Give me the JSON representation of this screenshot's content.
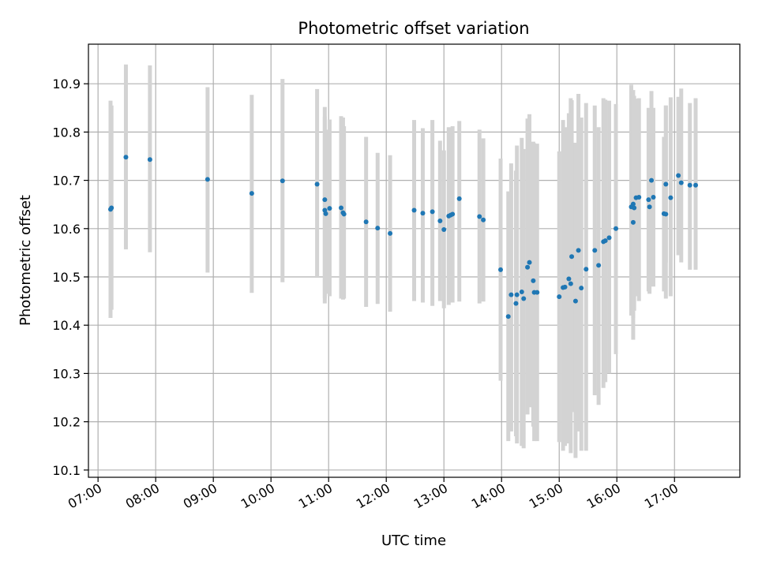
{
  "chart_data": {
    "type": "scatter",
    "title": "Photometric offset variation",
    "xlabel": "UTC time",
    "ylabel": "Photometric offset",
    "x_ticks": [
      "07:00",
      "08:00",
      "09:00",
      "10:00",
      "11:00",
      "12:00",
      "13:00",
      "14:00",
      "15:00",
      "16:00",
      "17:00"
    ],
    "y_ticks": [
      "10.1",
      "10.2",
      "10.3",
      "10.4",
      "10.5",
      "10.6",
      "10.7",
      "10.8",
      "10.9"
    ],
    "xlim": [
      "06:50",
      "18:08"
    ],
    "ylim": [
      10.085,
      10.982
    ],
    "grid": true,
    "colors": {
      "points": "#1f77b4",
      "errorbars": "#d3d3d3",
      "grid": "#b0b0b0"
    },
    "series": [
      {
        "x": [
          "07:13",
          "07:14",
          "07:29",
          "07:54",
          "08:54",
          "09:40",
          "10:12",
          "10:48",
          "10:56",
          "10:56",
          "10:57",
          "11:01",
          "11:13",
          "11:15",
          "11:16",
          "11:39",
          "11:51",
          "12:04",
          "12:29",
          "12:38",
          "12:48",
          "12:56",
          "13:00",
          "13:05",
          "13:07",
          "13:09",
          "13:16",
          "13:37",
          "13:41",
          "13:59",
          "14:07",
          "14:10",
          "14:15",
          "14:16",
          "14:21",
          "14:23",
          "14:27",
          "14:29",
          "14:33",
          "14:34",
          "14:37",
          "15:00",
          "15:04",
          "15:06",
          "15:10",
          "15:12",
          "15:13",
          "15:17",
          "15:20",
          "15:23",
          "15:28",
          "15:37",
          "15:41",
          "15:46",
          "15:48",
          "15:52",
          "15:59",
          "16:15",
          "16:17",
          "16:17",
          "16:18",
          "16:20",
          "16:23",
          "16:33",
          "16:34",
          "16:36",
          "16:38",
          "16:49",
          "16:51",
          "16:51",
          "16:56",
          "17:04",
          "17:07",
          "17:16",
          "17:22"
        ],
        "y": [
          10.64,
          10.643,
          10.748,
          10.743,
          10.702,
          10.673,
          10.699,
          10.692,
          10.66,
          10.638,
          10.631,
          10.642,
          10.643,
          10.633,
          10.63,
          10.614,
          10.601,
          10.59,
          10.638,
          10.632,
          10.635,
          10.616,
          10.598,
          10.626,
          10.628,
          10.63,
          10.662,
          10.625,
          10.618,
          10.515,
          10.418,
          10.463,
          10.445,
          10.463,
          10.469,
          10.455,
          10.52,
          10.53,
          10.492,
          10.468,
          10.468,
          10.459,
          10.478,
          10.479,
          10.496,
          10.486,
          10.542,
          10.45,
          10.555,
          10.477,
          10.516,
          10.555,
          10.524,
          10.573,
          10.575,
          10.581,
          10.6,
          10.645,
          10.651,
          10.613,
          10.643,
          10.664,
          10.665,
          10.66,
          10.645,
          10.7,
          10.665,
          10.631,
          10.63,
          10.692,
          10.664,
          10.71,
          10.695,
          10.69,
          10.69
        ],
        "err_lo": [
          10.415,
          10.432,
          10.557,
          10.551,
          10.509,
          10.467,
          10.489,
          10.5,
          10.445,
          10.455,
          10.465,
          10.46,
          10.455,
          10.453,
          10.455,
          10.438,
          10.444,
          10.428,
          10.45,
          10.447,
          10.44,
          10.45,
          10.435,
          10.442,
          10.447,
          10.447,
          10.449,
          10.445,
          10.449,
          10.285,
          10.16,
          10.18,
          10.17,
          10.155,
          10.15,
          10.145,
          10.215,
          10.23,
          10.19,
          10.16,
          10.16,
          10.158,
          10.14,
          10.15,
          10.155,
          10.135,
          10.22,
          10.125,
          10.18,
          10.14,
          10.14,
          10.255,
          10.235,
          10.27,
          10.282,
          10.3,
          10.34,
          10.42,
          10.415,
          10.37,
          10.43,
          10.46,
          10.45,
          10.47,
          10.465,
          10.54,
          10.48,
          10.47,
          10.455,
          10.53,
          10.46,
          10.545,
          10.53,
          10.515,
          10.515
        ],
        "err_hi": [
          10.865,
          10.855,
          10.94,
          10.938,
          10.893,
          10.877,
          10.91,
          10.889,
          10.832,
          10.852,
          10.805,
          10.826,
          10.833,
          10.83,
          10.812,
          10.79,
          10.757,
          10.752,
          10.825,
          10.808,
          10.825,
          10.782,
          10.762,
          10.81,
          10.809,
          10.812,
          10.823,
          10.805,
          10.787,
          10.745,
          10.677,
          10.735,
          10.72,
          10.772,
          10.788,
          10.765,
          10.828,
          10.837,
          10.78,
          10.777,
          10.776,
          10.76,
          10.825,
          10.81,
          10.839,
          10.87,
          10.866,
          10.778,
          10.879,
          10.83,
          10.86,
          10.855,
          10.81,
          10.87,
          10.867,
          10.865,
          10.858,
          10.898,
          10.887,
          10.858,
          10.875,
          10.869,
          10.87,
          10.85,
          10.848,
          10.885,
          10.85,
          10.79,
          10.855,
          10.855,
          10.872,
          10.873,
          10.89,
          10.86,
          10.87
        ]
      }
    ]
  }
}
